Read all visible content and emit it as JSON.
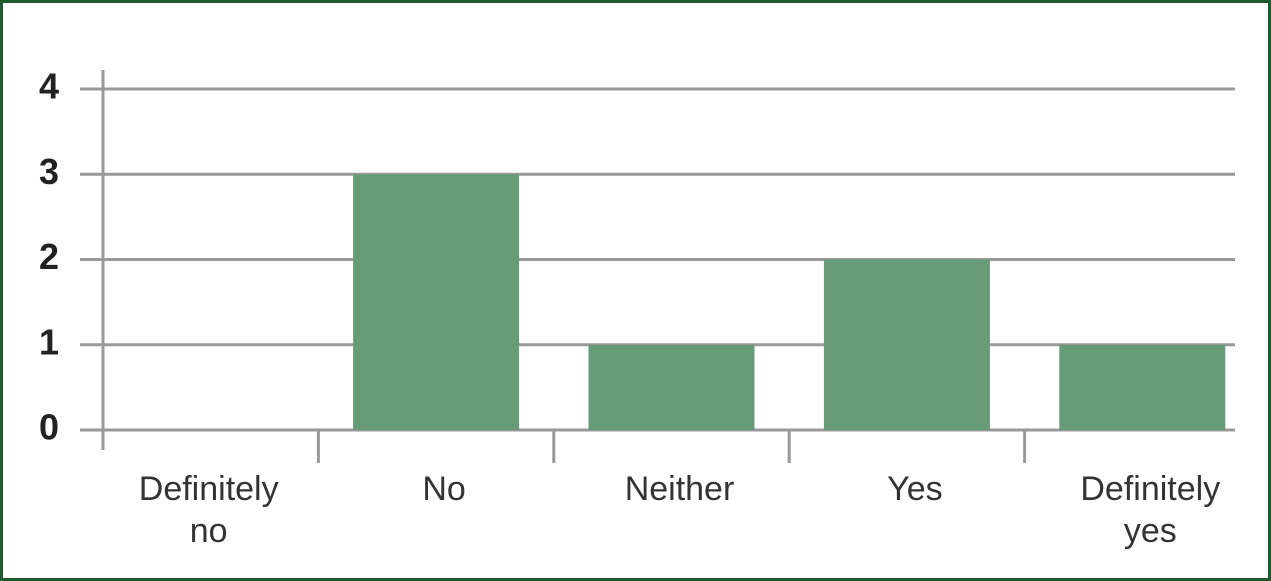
{
  "chart_data": {
    "type": "bar",
    "categories": [
      "Definitely no",
      "No",
      "Neither",
      "Yes",
      "Definitely yes"
    ],
    "values": [
      0,
      3,
      1,
      2,
      1
    ],
    "color": "#679a76",
    "ylim": [
      0,
      4
    ],
    "yticks": [
      0,
      1,
      2,
      3,
      4
    ],
    "grid": true
  }
}
